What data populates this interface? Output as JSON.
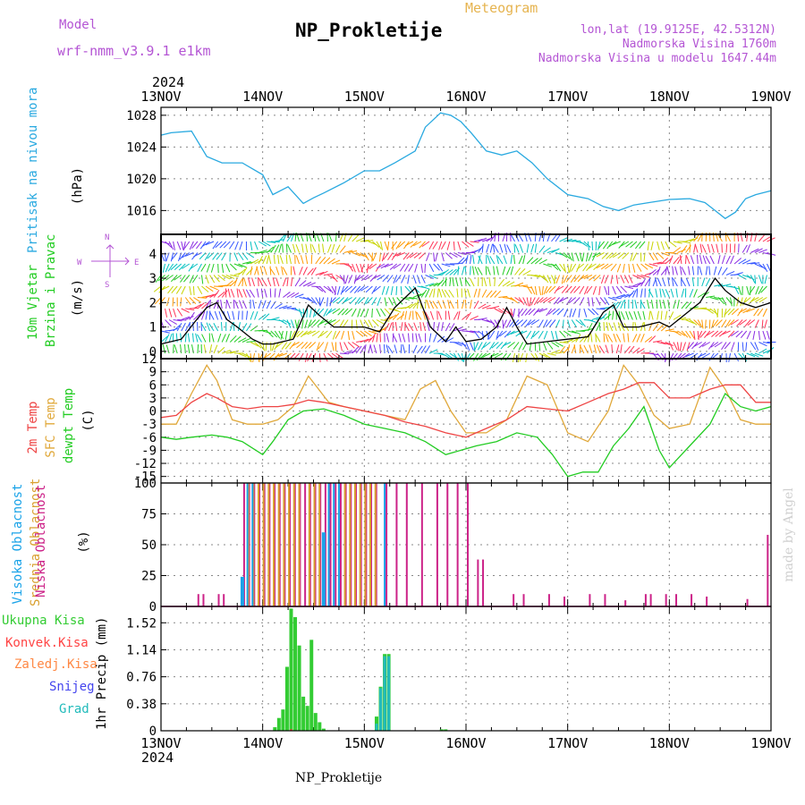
{
  "header": {
    "model_label": "Model",
    "model_value": "wrf-nmm_v3.9.1 e1km",
    "title": "NP_Prokletije",
    "meteogram": "Meteogram",
    "coords": "lon,lat (19.9125E, 42.5312N)",
    "altitude": "Nadmorska Visina 1760m",
    "model_altitude": "Nadmorska Visina u modelu 1647.44m",
    "year_top": "2024",
    "year_bottom": "2024",
    "footer_title": "NP_Prokletije",
    "watermark": "made by Angel"
  },
  "colors": {
    "pressure": "#29a9e0",
    "wind_speed": "#000000",
    "temp2m": "#ee4444",
    "sfc_temp": "#e0a83a",
    "dewpoint": "#22cc22",
    "high_cloud": "#1aa3e8",
    "mid_cloud": "#d9a030",
    "low_cloud": "#cc2288",
    "total_precip": "#33cc33",
    "conv_precip": "#ff4444",
    "frozen_precip": "#ff8844",
    "snow": "#4444ee",
    "graupel": "#22bbbb",
    "title_color": "#000000",
    "purple_text": "#b455d4",
    "orange_text": "#e6b450"
  },
  "panel_labels": {
    "pressure": {
      "name": "Pritisak na nivou mora",
      "unit": "(hPa)"
    },
    "wind": {
      "name1": "10m Vjetar",
      "name2": "Brzina i Pravac",
      "unit": "(m/s)",
      "compass_n": "N",
      "compass_s": "S",
      "compass_e": "E",
      "compass_w": "W"
    },
    "temp": {
      "name1": "2m Temp",
      "name2": "SFC Temp",
      "name3": "dewpt Temp",
      "unit": "(C)"
    },
    "cloud": {
      "name1": "Visoka Oblacnost",
      "name2": "Srednja Oblacnost",
      "name3": "Niska Oblacnost",
      "unit": "(%)"
    },
    "precip": {
      "legend": [
        "Ukupna Kisa",
        "Konvek.Kisa",
        "Zaledj.Kisa",
        "Snijeg",
        "Grad"
      ],
      "axis": "1hr Precip (mm)"
    }
  },
  "chart_data": [
    {
      "type": "line",
      "id": "pressure",
      "x_days": [
        "13NOV",
        "14NOV",
        "15NOV",
        "16NOV",
        "17NOV",
        "18NOV",
        "19NOV"
      ],
      "ylim": [
        1013,
        1029
      ],
      "yticks": [
        1016,
        1020,
        1024,
        1028
      ],
      "grid": true,
      "series": [
        {
          "x": [
            0,
            0.1,
            0.3,
            0.45,
            0.6,
            0.8,
            1.0,
            1.1,
            1.25,
            1.4,
            1.5,
            1.6,
            1.8,
            2.0,
            2.15,
            2.3,
            2.5,
            2.6,
            2.75,
            2.85,
            2.95,
            3.05,
            3.2,
            3.35,
            3.5,
            3.65,
            3.8,
            4.0,
            4.2,
            4.35,
            4.5,
            4.65,
            4.8,
            5.0,
            5.2,
            5.35,
            5.45,
            5.55,
            5.65,
            5.75,
            5.85,
            6.0
          ],
          "values": [
            1025.5,
            1025.8,
            1026.0,
            1022.8,
            1022.0,
            1022.0,
            1020.5,
            1018.0,
            1019.0,
            1016.9,
            1017.6,
            1018.2,
            1019.5,
            1021.0,
            1021.0,
            1022.0,
            1023.5,
            1026.5,
            1028.3,
            1028.0,
            1027.2,
            1025.8,
            1023.5,
            1023.0,
            1023.5,
            1022.0,
            1020.0,
            1018.0,
            1017.5,
            1016.5,
            1016.0,
            1016.7,
            1017.0,
            1017.4,
            1017.5,
            1017.0,
            1016.0,
            1015.0,
            1015.8,
            1017.5,
            1018.0,
            1018.5
          ]
        }
      ]
    },
    {
      "type": "line",
      "id": "wind_speed",
      "ylim": [
        -0.3,
        4.8
      ],
      "yticks": [
        0,
        1,
        2,
        3,
        4
      ],
      "grid": true,
      "series": [
        {
          "x": [
            0,
            0.2,
            0.35,
            0.45,
            0.55,
            0.65,
            0.75,
            0.9,
            1.0,
            1.1,
            1.3,
            1.45,
            1.55,
            1.7,
            1.9,
            2.0,
            2.15,
            2.3,
            2.5,
            2.65,
            2.8,
            2.9,
            3.0,
            3.15,
            3.3,
            3.4,
            3.5,
            3.6,
            3.8,
            4.0,
            4.2,
            4.35,
            4.45,
            4.55,
            4.7,
            4.9,
            5.0,
            5.15,
            5.3,
            5.45,
            5.55,
            5.7,
            5.85,
            6.0
          ],
          "values": [
            0.3,
            0.5,
            1.3,
            1.8,
            2.0,
            1.3,
            1.0,
            0.5,
            0.3,
            0.3,
            0.5,
            1.9,
            1.5,
            1.0,
            1.0,
            1.0,
            0.8,
            1.8,
            2.6,
            1.0,
            0.4,
            1.0,
            0.4,
            0.5,
            1.0,
            1.8,
            1.0,
            0.3,
            0.4,
            0.5,
            0.6,
            1.6,
            1.9,
            1.0,
            1.0,
            1.2,
            1.0,
            1.5,
            2.0,
            3.0,
            2.5,
            2.0,
            1.8,
            2.0
          ]
        }
      ]
    },
    {
      "type": "line",
      "id": "temperature",
      "ylim": [
        -16.5,
        12
      ],
      "yticks": [
        -15,
        -12,
        -9,
        -6,
        -3,
        0,
        3,
        6,
        9,
        12
      ],
      "grid": true,
      "series": [
        {
          "name": "2m Temp",
          "x": [
            0,
            0.15,
            0.3,
            0.45,
            0.55,
            0.7,
            0.85,
            1.0,
            1.15,
            1.3,
            1.45,
            1.6,
            1.8,
            2.0,
            2.2,
            2.4,
            2.6,
            2.8,
            3.0,
            3.2,
            3.4,
            3.6,
            3.8,
            4.0,
            4.2,
            4.4,
            4.55,
            4.7,
            4.85,
            5.0,
            5.2,
            5.4,
            5.55,
            5.7,
            5.85,
            6.0
          ],
          "values": [
            -1.5,
            -1.0,
            2.0,
            4.0,
            3.0,
            1.0,
            0.5,
            1.0,
            1.0,
            1.5,
            2.5,
            2.0,
            1.0,
            0.0,
            -1.0,
            -2.5,
            -3.5,
            -5.0,
            -6.0,
            -4.0,
            -2.0,
            1.0,
            0.5,
            0.0,
            2.0,
            4.0,
            5.0,
            6.5,
            6.5,
            3.0,
            3.0,
            5.0,
            6.0,
            6.0,
            2.0,
            2.0
          ]
        },
        {
          "name": "SFC Temp",
          "x": [
            0,
            0.15,
            0.3,
            0.45,
            0.55,
            0.7,
            0.85,
            1.0,
            1.15,
            1.3,
            1.45,
            1.55,
            1.65,
            1.8,
            2.0,
            2.2,
            2.4,
            2.55,
            2.7,
            2.85,
            3.0,
            3.2,
            3.4,
            3.6,
            3.8,
            4.0,
            4.2,
            4.4,
            4.55,
            4.7,
            4.85,
            5.0,
            5.2,
            5.4,
            5.55,
            5.7,
            5.85,
            6.0
          ],
          "values": [
            -3.0,
            -3.0,
            4.0,
            10.5,
            7.0,
            -2.0,
            -3.0,
            -3.0,
            -2.0,
            1.0,
            8.0,
            5.0,
            2.0,
            1.0,
            0.0,
            -1.0,
            -2.0,
            5.0,
            7.0,
            0.0,
            -5.0,
            -5.0,
            -2.0,
            8.0,
            6.0,
            -5.0,
            -7.0,
            0.0,
            10.5,
            6.0,
            -1.0,
            -4.0,
            -3.0,
            10.0,
            5.0,
            -2.0,
            -3.0,
            -3.0
          ]
        },
        {
          "name": "dewpt Temp",
          "x": [
            0,
            0.15,
            0.3,
            0.5,
            0.65,
            0.8,
            1.0,
            1.1,
            1.25,
            1.4,
            1.6,
            1.8,
            2.0,
            2.2,
            2.4,
            2.6,
            2.8,
            2.95,
            3.1,
            3.3,
            3.5,
            3.7,
            3.85,
            4.0,
            4.15,
            4.3,
            4.45,
            4.6,
            4.75,
            4.9,
            5.0,
            5.2,
            5.4,
            5.55,
            5.7,
            5.85,
            6.0
          ],
          "values": [
            -6.0,
            -6.5,
            -6.0,
            -5.5,
            -6.0,
            -7.0,
            -10.0,
            -7.0,
            -2.0,
            0.0,
            0.5,
            -1.0,
            -3.0,
            -4.0,
            -5.0,
            -7.0,
            -10.0,
            -9.0,
            -8.0,
            -7.0,
            -5.0,
            -6.0,
            -10.0,
            -15.0,
            -14.0,
            -14.0,
            -8.0,
            -4.0,
            1.0,
            -9.0,
            -13.0,
            -8.0,
            -3.0,
            4.0,
            1.0,
            0.0,
            1.0
          ]
        }
      ]
    },
    {
      "type": "bar",
      "id": "clouds",
      "ylim": [
        0,
        100
      ],
      "yticks": [
        0,
        25,
        50,
        75,
        100
      ],
      "grid": true,
      "series": [
        {
          "name": "Visoka Oblacnost",
          "x": [
            0.8,
            0.85,
            0.9,
            1.6,
            1.65,
            1.7,
            1.75,
            2.2
          ],
          "values": [
            24,
            100,
            100,
            60,
            100,
            100,
            100,
            100
          ]
        },
        {
          "name": "Srednja Oblacnost",
          "x": [
            0.85,
            0.9,
            0.95,
            1.0,
            1.05,
            1.1,
            1.15,
            1.2,
            1.25,
            1.3,
            1.35,
            1.45,
            1.5,
            1.55,
            1.8,
            1.85,
            1.9,
            1.95,
            2.0,
            2.05,
            2.1
          ],
          "values": [
            100,
            100,
            100,
            100,
            100,
            100,
            100,
            100,
            100,
            100,
            100,
            100,
            100,
            100,
            100,
            100,
            100,
            100,
            100,
            100,
            100
          ]
        },
        {
          "name": "Niska Oblacnost",
          "x": [
            0.35,
            0.4,
            0.55,
            0.6,
            0.8,
            0.85,
            0.9,
            0.95,
            1.0,
            1.05,
            1.1,
            1.15,
            1.2,
            1.25,
            1.3,
            1.35,
            1.4,
            1.45,
            1.5,
            1.55,
            1.6,
            1.65,
            1.7,
            1.75,
            1.8,
            1.85,
            1.9,
            1.95,
            2.0,
            2.05,
            2.1,
            2.2,
            2.3,
            2.4,
            2.55,
            2.7,
            2.8,
            2.9,
            3.0,
            3.1,
            3.15,
            3.2,
            3.45,
            3.55,
            3.8,
            3.95,
            4.2,
            4.35,
            4.55,
            4.75,
            4.8,
            4.95,
            5.05,
            5.2,
            5.35,
            5.75,
            5.95,
            6.0
          ],
          "values": [
            10,
            10,
            10,
            10,
            100,
            100,
            100,
            100,
            100,
            100,
            100,
            100,
            100,
            100,
            100,
            100,
            100,
            100,
            100,
            100,
            100,
            100,
            100,
            100,
            100,
            100,
            100,
            100,
            100,
            100,
            100,
            100,
            100,
            100,
            100,
            100,
            100,
            100,
            100,
            38,
            38,
            0,
            10,
            10,
            10,
            8,
            10,
            10,
            5,
            10,
            10,
            10,
            10,
            10,
            8,
            6,
            58,
            0
          ]
        }
      ]
    },
    {
      "type": "bar",
      "id": "precip",
      "ylim": [
        0,
        1.75
      ],
      "yticks": [
        0,
        0.38,
        0.76,
        1.14,
        1.52
      ],
      "yticklabels": [
        "0",
        "0.38",
        "0.76",
        "1.14",
        "1.52"
      ],
      "grid": true,
      "x_days": [
        "13NOV",
        "14NOV",
        "15NOV",
        "16NOV",
        "17NOV",
        "18NOV",
        "19NOV"
      ],
      "series": [
        {
          "name": "Ukupna Kisa",
          "x": [
            1.12,
            1.16,
            1.2,
            1.24,
            1.28,
            1.32,
            1.36,
            1.4,
            1.44,
            1.48,
            1.52,
            1.56,
            1.6,
            2.12,
            2.16,
            2.2,
            2.24,
            2.76,
            2.8
          ],
          "values": [
            0.05,
            0.18,
            0.3,
            0.9,
            1.72,
            1.6,
            1.2,
            0.48,
            0.35,
            1.28,
            0.25,
            0.12,
            0.03,
            0.2,
            0.62,
            1.08,
            1.08,
            0.02,
            0.02
          ]
        },
        {
          "name": "Konvek.Kisa",
          "x": [
            1.28
          ],
          "values": [
            0.02
          ]
        },
        {
          "name": "Zaledj.Kisa",
          "x": [],
          "values": []
        },
        {
          "name": "Snijeg",
          "x": [
            2.16,
            2.2
          ],
          "values": [
            0.55,
            1.0
          ]
        },
        {
          "name": "Grad",
          "x": [
            2.12,
            2.16,
            2.2,
            2.24
          ],
          "values": [
            0.1,
            0.6,
            1.05,
            1.05
          ]
        }
      ]
    }
  ]
}
